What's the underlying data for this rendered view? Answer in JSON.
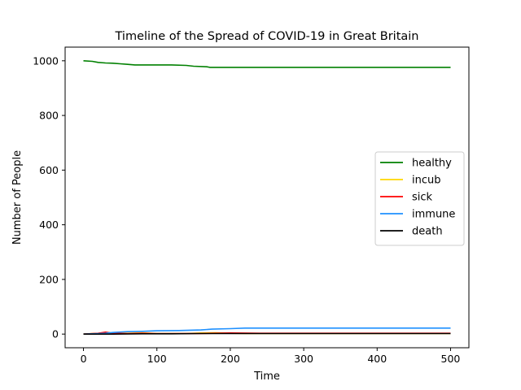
{
  "chart_data": {
    "type": "line",
    "title": "Timeline of the Spread of COVID-19 in Great Britain",
    "xlabel": "Time",
    "ylabel": "Number of People",
    "xlim": [
      -25,
      525
    ],
    "ylim": [
      -50,
      1050
    ],
    "xticks": [
      0,
      100,
      200,
      300,
      400,
      500
    ],
    "yticks": [
      0,
      200,
      400,
      600,
      800,
      1000
    ],
    "grid": false,
    "legend_position": "center-right",
    "series": [
      {
        "name": "healthy",
        "color": "#008000",
        "points": [
          [
            0,
            1000
          ],
          [
            12,
            998
          ],
          [
            20,
            994
          ],
          [
            30,
            992
          ],
          [
            40,
            991
          ],
          [
            50,
            989
          ],
          [
            60,
            987
          ],
          [
            70,
            985
          ],
          [
            80,
            985
          ],
          [
            120,
            985
          ],
          [
            140,
            983
          ],
          [
            150,
            980
          ],
          [
            168,
            978
          ],
          [
            172,
            976
          ],
          [
            220,
            976
          ],
          [
            500,
            976
          ]
        ]
      },
      {
        "name": "incub",
        "color": "#FFD700",
        "points": [
          [
            0,
            0
          ],
          [
            20,
            3
          ],
          [
            30,
            6
          ],
          [
            40,
            4
          ],
          [
            60,
            3
          ],
          [
            80,
            5
          ],
          [
            100,
            2
          ],
          [
            140,
            2
          ],
          [
            160,
            4
          ],
          [
            180,
            5
          ],
          [
            200,
            3
          ],
          [
            220,
            2
          ],
          [
            500,
            2
          ]
        ]
      },
      {
        "name": "sick",
        "color": "#FF0000",
        "points": [
          [
            0,
            0
          ],
          [
            20,
            3
          ],
          [
            30,
            7
          ],
          [
            40,
            3
          ],
          [
            60,
            2
          ],
          [
            80,
            3
          ],
          [
            100,
            2
          ],
          [
            160,
            2
          ],
          [
            200,
            4
          ],
          [
            240,
            3
          ],
          [
            500,
            3
          ]
        ]
      },
      {
        "name": "immune",
        "color": "#1E90FF",
        "points": [
          [
            0,
            0
          ],
          [
            30,
            3
          ],
          [
            40,
            6
          ],
          [
            60,
            9
          ],
          [
            80,
            10
          ],
          [
            100,
            12
          ],
          [
            130,
            13
          ],
          [
            160,
            15
          ],
          [
            175,
            18
          ],
          [
            200,
            20
          ],
          [
            220,
            22
          ],
          [
            500,
            22
          ]
        ]
      },
      {
        "name": "death",
        "color": "#000000",
        "points": [
          [
            0,
            0
          ],
          [
            40,
            0
          ],
          [
            80,
            1
          ],
          [
            120,
            1
          ],
          [
            160,
            2
          ],
          [
            200,
            2
          ],
          [
            500,
            2
          ]
        ]
      }
    ]
  }
}
